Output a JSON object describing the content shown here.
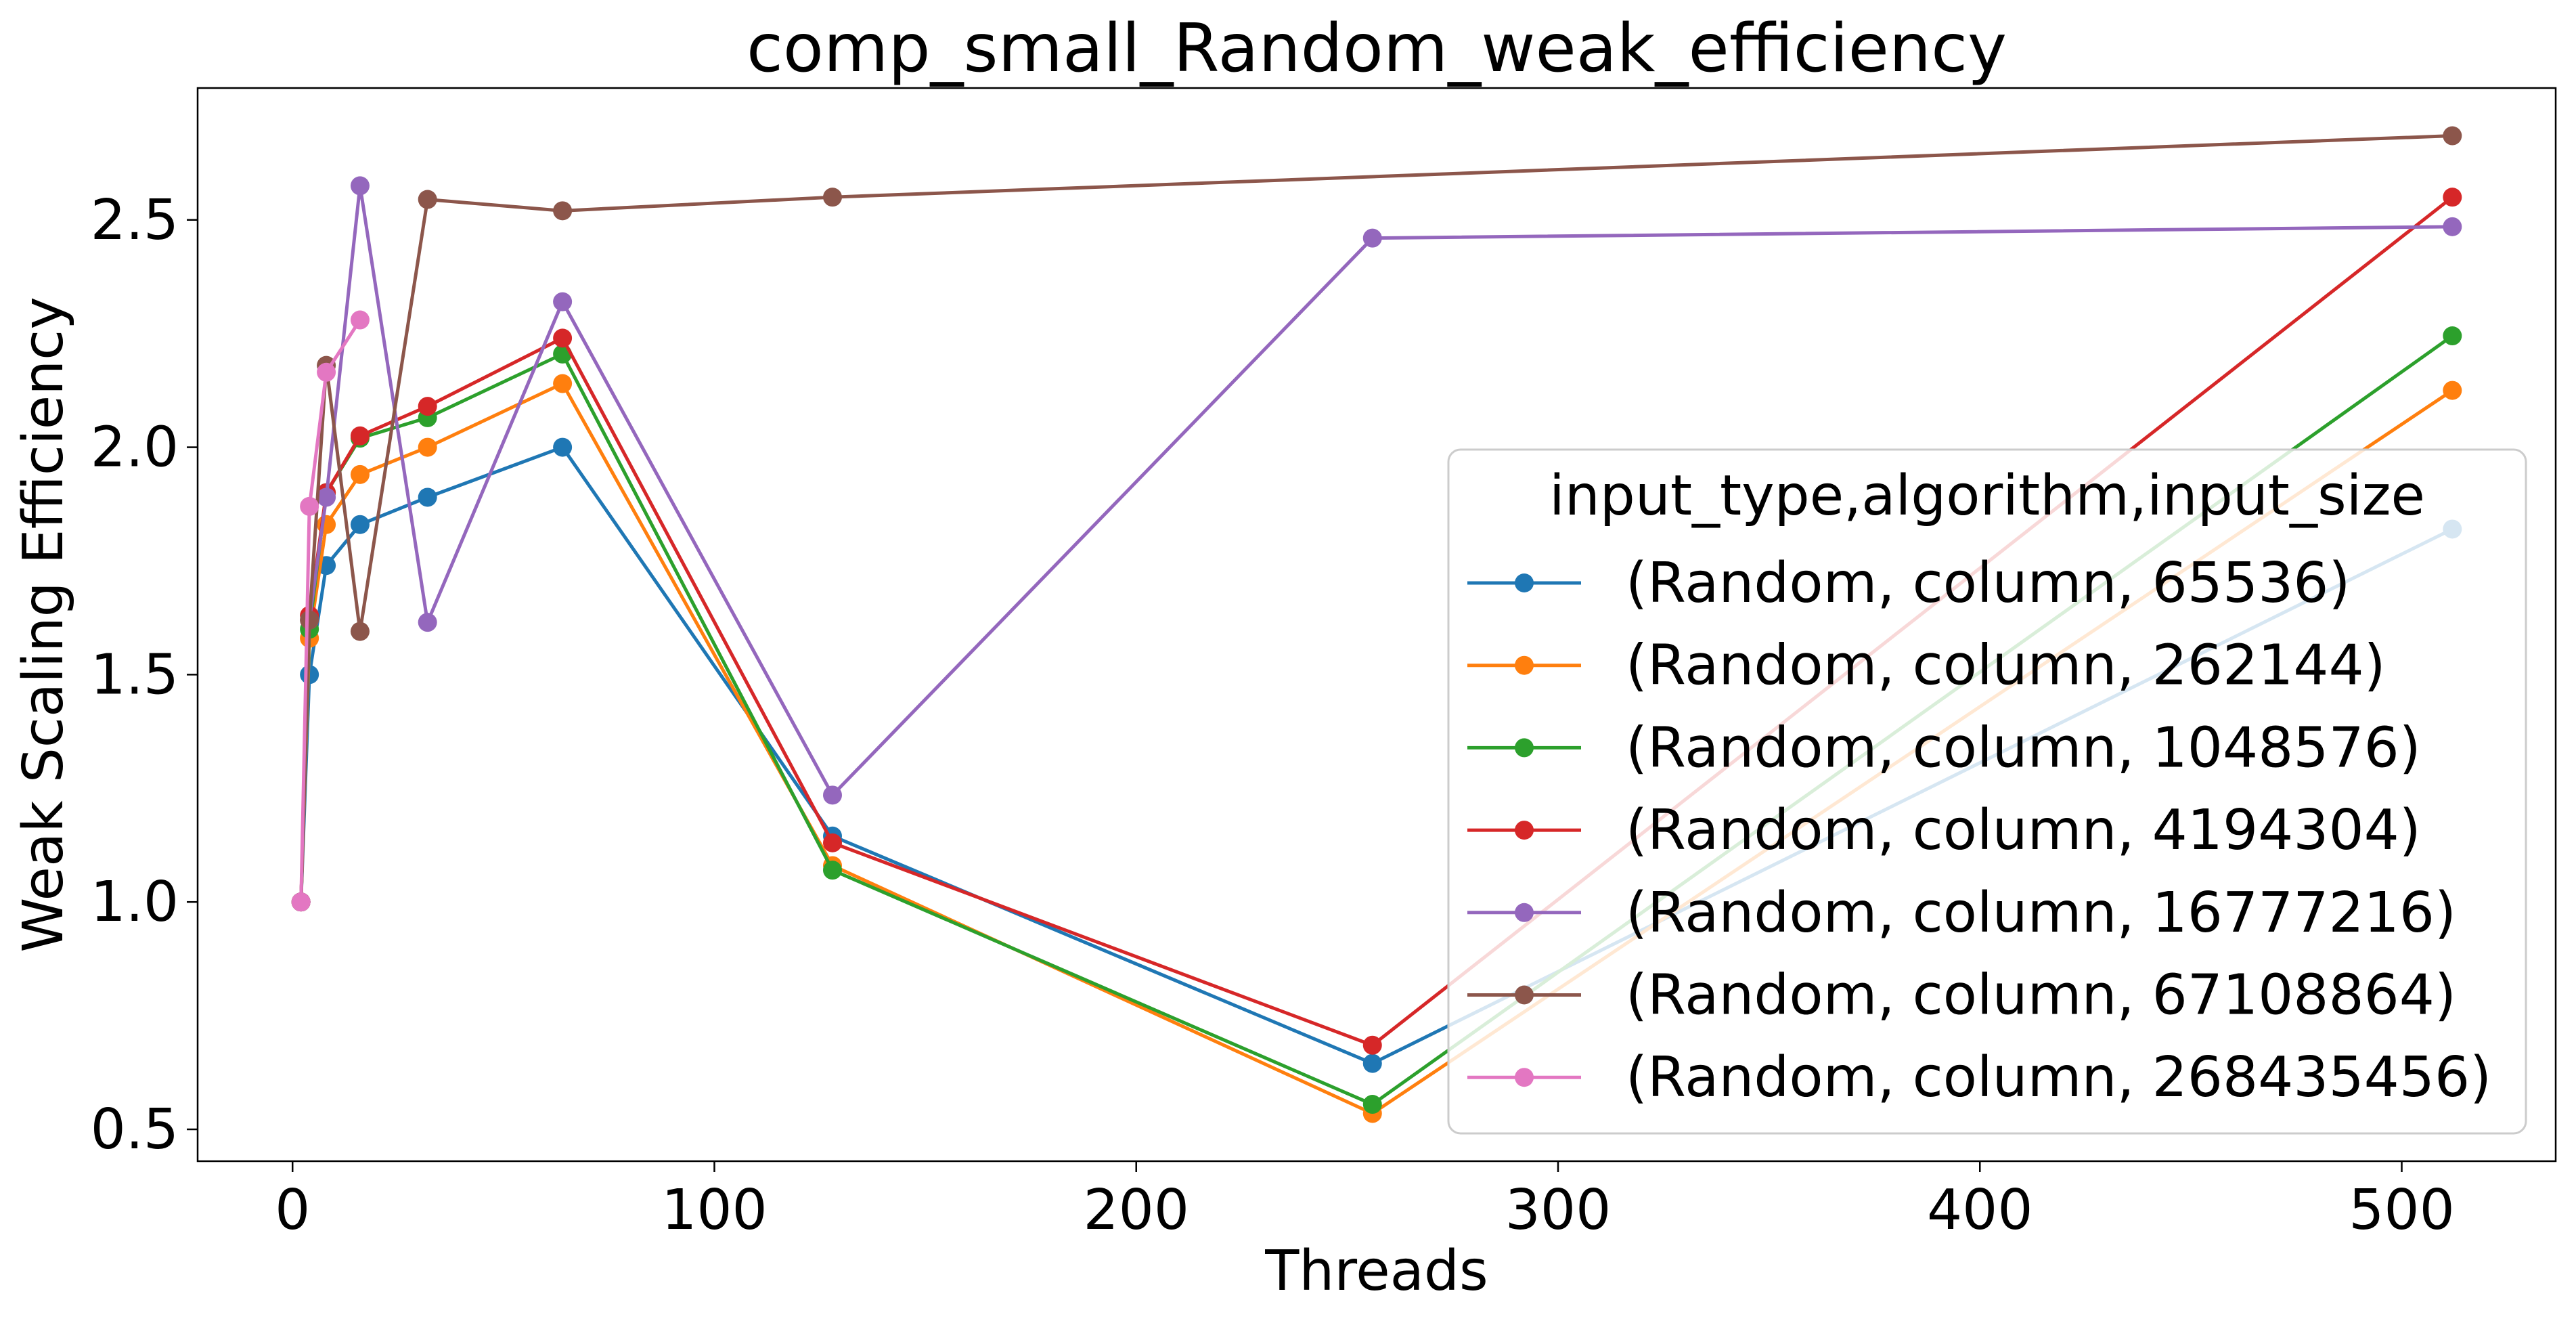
{
  "chart_data": {
    "type": "line",
    "title": "comp_small_Random_weak_efficiency",
    "xlabel": "Threads",
    "ylabel": "Weak Scaling Efficiency",
    "xlim": [
      -22.5,
      536.5
    ],
    "ylim": [
      0.43,
      2.79
    ],
    "xticks": [
      0,
      100,
      200,
      300,
      400,
      500
    ],
    "yticks": [
      0.5,
      1.0,
      1.5,
      2.0,
      2.5
    ],
    "xtick_labels": [
      "0",
      "100",
      "200",
      "300",
      "400",
      "500"
    ],
    "ytick_labels": [
      "0.5",
      "1.0",
      "1.5",
      "2.0",
      "2.5"
    ],
    "legend": {
      "title": "input_type,algorithm,input_size",
      "placement": "lower-right"
    },
    "grid": false,
    "series": [
      {
        "name": "(Random, column, 65536)",
        "color": "#1f77b4",
        "points": [
          {
            "x": 2,
            "y": 1.0
          },
          {
            "x": 4,
            "y": 1.5
          },
          {
            "x": 8,
            "y": 1.74
          },
          {
            "x": 16,
            "y": 1.83
          },
          {
            "x": 32,
            "y": 1.89
          },
          {
            "x": 64,
            "y": 2.0
          },
          {
            "x": 128,
            "y": 1.145
          },
          {
            "x": 256,
            "y": 0.645
          },
          {
            "x": 512,
            "y": 1.82
          }
        ]
      },
      {
        "name": "(Random, column, 262144)",
        "color": "#ff7f0e",
        "points": [
          {
            "x": 2,
            "y": 1.0
          },
          {
            "x": 4,
            "y": 1.58
          },
          {
            "x": 8,
            "y": 1.83
          },
          {
            "x": 16,
            "y": 1.94
          },
          {
            "x": 32,
            "y": 2.0
          },
          {
            "x": 64,
            "y": 2.14
          },
          {
            "x": 128,
            "y": 1.08
          },
          {
            "x": 256,
            "y": 0.535
          },
          {
            "x": 512,
            "y": 2.125
          }
        ]
      },
      {
        "name": "(Random, column, 1048576)",
        "color": "#2ca02c",
        "points": [
          {
            "x": 2,
            "y": 1.0
          },
          {
            "x": 4,
            "y": 1.6
          },
          {
            "x": 8,
            "y": 1.9
          },
          {
            "x": 16,
            "y": 2.02
          },
          {
            "x": 32,
            "y": 2.065
          },
          {
            "x": 64,
            "y": 2.205
          },
          {
            "x": 128,
            "y": 1.07
          },
          {
            "x": 256,
            "y": 0.555
          },
          {
            "x": 512,
            "y": 2.245
          }
        ]
      },
      {
        "name": "(Random, column, 4194304)",
        "color": "#d62728",
        "points": [
          {
            "x": 2,
            "y": 1.0
          },
          {
            "x": 4,
            "y": 1.63
          },
          {
            "x": 8,
            "y": 1.9
          },
          {
            "x": 16,
            "y": 2.025
          },
          {
            "x": 32,
            "y": 2.09
          },
          {
            "x": 64,
            "y": 2.24
          },
          {
            "x": 128,
            "y": 1.13
          },
          {
            "x": 256,
            "y": 0.685
          },
          {
            "x": 512,
            "y": 2.55
          }
        ]
      },
      {
        "name": "(Random, column, 16777216)",
        "color": "#9467bd",
        "points": [
          {
            "x": 2,
            "y": 1.0
          },
          {
            "x": 4,
            "y": 1.62
          },
          {
            "x": 8,
            "y": 1.89
          },
          {
            "x": 16,
            "y": 2.575
          },
          {
            "x": 32,
            "y": 1.615
          },
          {
            "x": 64,
            "y": 2.32
          },
          {
            "x": 128,
            "y": 1.235
          },
          {
            "x": 256,
            "y": 2.46
          },
          {
            "x": 512,
            "y": 2.485
          }
        ]
      },
      {
        "name": "(Random, column, 67108864)",
        "color": "#8c564b",
        "points": [
          {
            "x": 2,
            "y": 1.0
          },
          {
            "x": 4,
            "y": 1.62
          },
          {
            "x": 8,
            "y": 2.18
          },
          {
            "x": 16,
            "y": 1.595
          },
          {
            "x": 32,
            "y": 2.545
          },
          {
            "x": 64,
            "y": 2.52
          },
          {
            "x": 128,
            "y": 2.55
          },
          {
            "x": 512,
            "y": 2.685
          }
        ]
      },
      {
        "name": "(Random, column, 268435456)",
        "color": "#e377c2",
        "points": [
          {
            "x": 2,
            "y": 1.0
          },
          {
            "x": 4,
            "y": 1.87
          },
          {
            "x": 8,
            "y": 2.165
          },
          {
            "x": 16,
            "y": 2.28
          }
        ]
      }
    ]
  }
}
